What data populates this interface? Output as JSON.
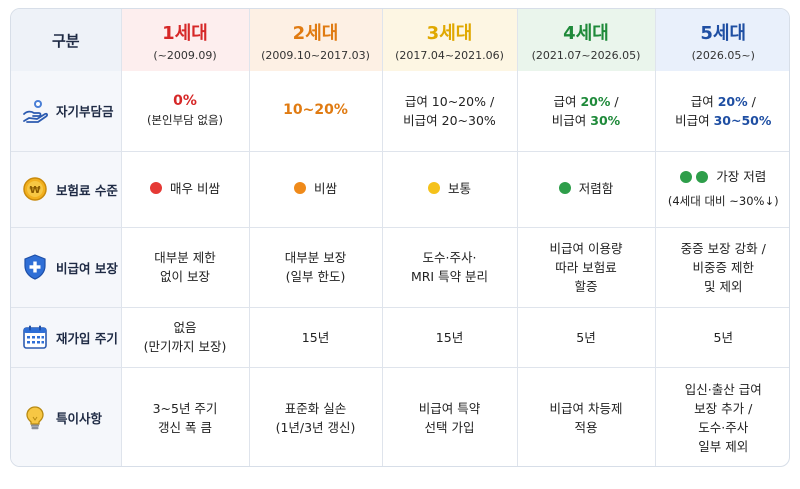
{
  "header": {
    "category_label": "구분",
    "generations": [
      {
        "title": "1세대",
        "period": "(~2009.09)",
        "color": "#d62828"
      },
      {
        "title": "2세대",
        "period": "(2009.10~2017.03)",
        "color": "#e07b12"
      },
      {
        "title": "3세대",
        "period": "(2017.04~2021.06)",
        "color": "#e0a800"
      },
      {
        "title": "4세대",
        "period": "(2021.07~2026.05)",
        "color": "#1f8a3a"
      },
      {
        "title": "5세대",
        "period": "(2026.05~)",
        "color": "#1f4fa3"
      }
    ]
  },
  "rows": {
    "copay": {
      "label": "자기부담금",
      "icon": "hand-coin-icon",
      "g1_main": "0%",
      "g1_sub": "(본인부담 없음)",
      "g2_main": "10~20%",
      "g3_line1": "급여 10~20% /",
      "g3_line2": "비급여 20~30%",
      "g4_line1_a": "급여 ",
      "g4_line1_b": "20%",
      "g4_line1_c": " /",
      "g4_line2_a": "비급여 ",
      "g4_line2_b": "30%",
      "g5_line1_a": "급여 ",
      "g5_line1_b": "20%",
      "g5_line1_c": " /",
      "g5_line2_a": "비급여 ",
      "g5_line2_b": "30~50%"
    },
    "premium": {
      "label": "보험료 수준",
      "icon": "won-coin-icon",
      "g1": "매우 비쌈",
      "g1_dot": "#e53935",
      "g2": "비쌈",
      "g2_dot": "#ef8a1a",
      "g3": "보통",
      "g3_dot": "#f5c21b",
      "g4": "저렴함",
      "g4_dot": "#2e9e4a",
      "g5": "가장 저렴",
      "g5_sub": "(4세대 대비 ~30%↓)",
      "g5_dot": "#2e9e4a"
    },
    "noncovered": {
      "label": "비급여 보장",
      "icon": "shield-plus-icon",
      "g1_l1": "대부분 제한",
      "g1_l2": "없이 보장",
      "g2_l1": "대부분 보장",
      "g2_l2": "(일부 한도)",
      "g3_l1": "도수·주사·",
      "g3_l2": "MRI 특약 분리",
      "g4_l1": "비급여 이용량",
      "g4_l2": "따라 보험료",
      "g4_l3": "할증",
      "g5_l1": "중증 보장 강화 /",
      "g5_l2": "비중증 제한",
      "g5_l3": "및 제외"
    },
    "renewal": {
      "label": "재가입 주기",
      "icon": "calendar-icon",
      "g1_l1": "없음",
      "g1_l2": "(만기까지 보장)",
      "g2": "15년",
      "g3": "15년",
      "g4": "5년",
      "g5": "5년"
    },
    "notes": {
      "label": "특이사항",
      "icon": "lightbulb-icon",
      "g1_l1": "3~5년 주기",
      "g1_l2": "갱신 폭 큼",
      "g2_l1": "표준화 실손",
      "g2_l2": "(1년/3년 갱신)",
      "g3_l1": "비급여 특약",
      "g3_l2": "선택 가입",
      "g4_l1": "비급여 차등제",
      "g4_l2": "적용",
      "g5_l1": "입신·출산 급여",
      "g5_l2": "보장 추가 /",
      "g5_l3": "도수·주사",
      "g5_l4": "일부 제외"
    }
  }
}
